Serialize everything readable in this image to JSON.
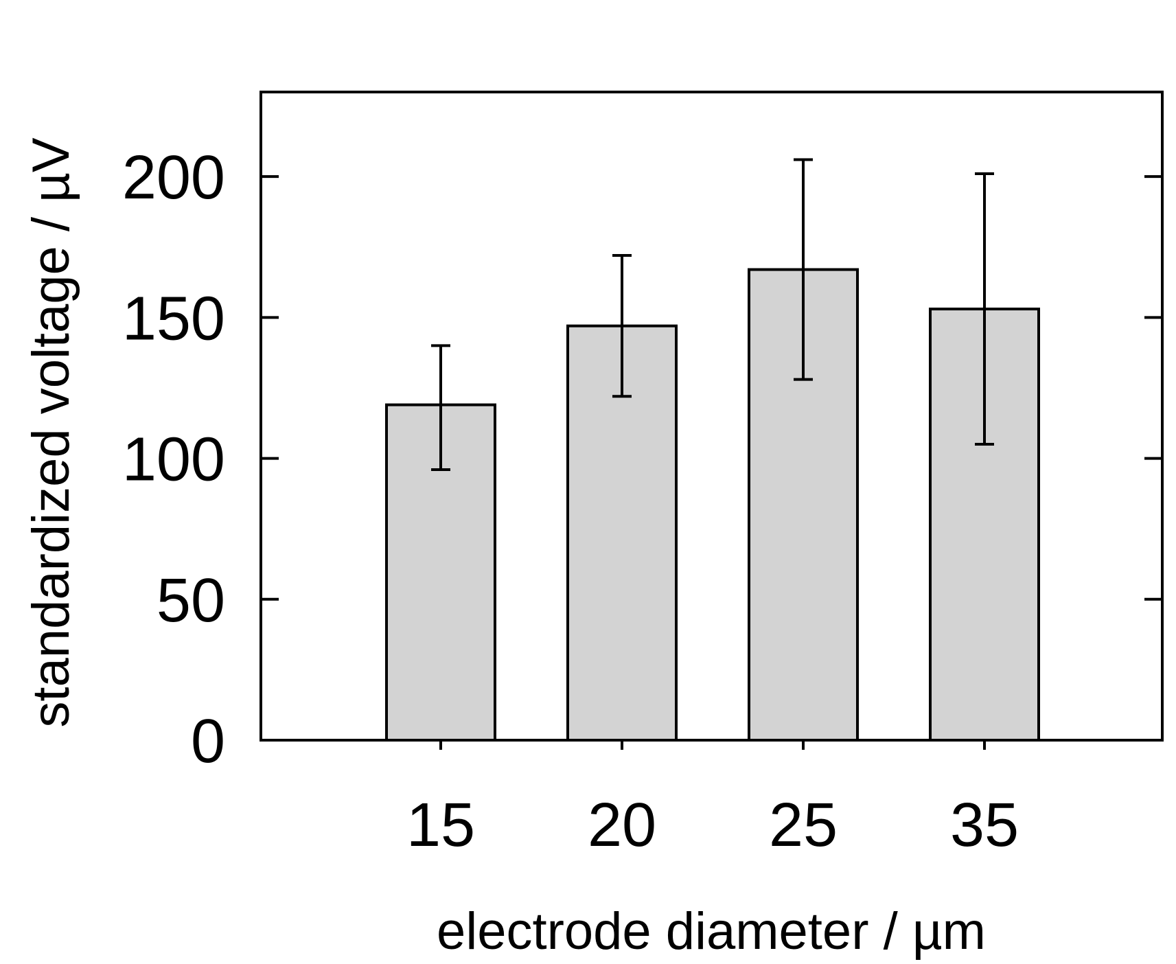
{
  "chart_data": {
    "type": "bar",
    "categories": [
      "15",
      "20",
      "25",
      "35"
    ],
    "values": [
      119,
      147,
      167,
      153
    ],
    "error_bars": [
      {
        "low": 96,
        "high": 140
      },
      {
        "low": 122,
        "high": 172
      },
      {
        "low": 128,
        "high": 206
      },
      {
        "low": 105,
        "high": 201
      }
    ],
    "xlabel": "electrode diameter / µm",
    "ylabel": "standardized voltage / µV",
    "ylim": [
      0,
      230
    ],
    "yticks": [
      0,
      50,
      100,
      150,
      200
    ],
    "bar_color": "#d3d3d3",
    "grid": false
  }
}
